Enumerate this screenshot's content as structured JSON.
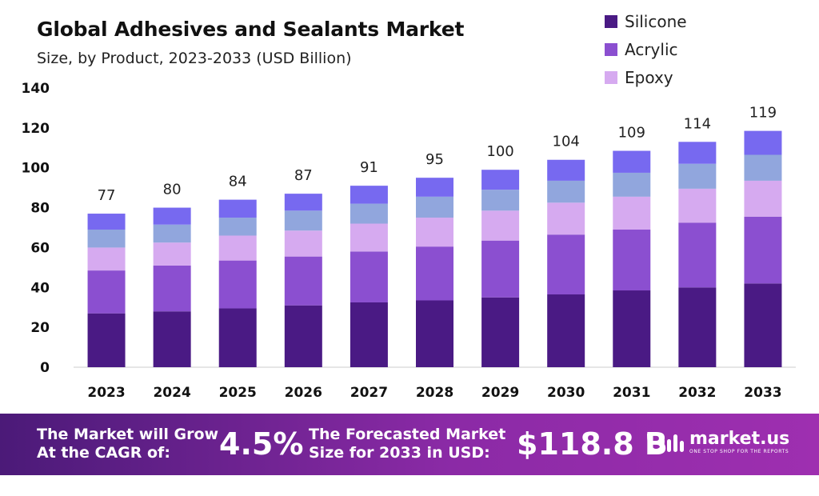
{
  "header": {
    "title": "Global Adhesives and Sealants Market",
    "subtitle": "Size, by Product, 2023-2033 (USD Billion)"
  },
  "legend": [
    {
      "label": "Silicone",
      "color": "#4a1a84"
    },
    {
      "label": "Acrylic",
      "color": "#8b4fd0"
    },
    {
      "label": "Epoxy",
      "color": "#d6aaf0"
    }
  ],
  "chart_data": {
    "type": "bar",
    "stacked": true,
    "categories": [
      "2023",
      "2024",
      "2025",
      "2026",
      "2027",
      "2028",
      "2029",
      "2030",
      "2031",
      "2032",
      "2033"
    ],
    "series": [
      {
        "name": "Silicone",
        "color": "#4a1a84",
        "values": [
          27,
          28,
          29.5,
          31,
          32.5,
          33.5,
          35,
          36.5,
          38.5,
          40,
          42
        ]
      },
      {
        "name": "Acrylic",
        "color": "#8b4fd0",
        "values": [
          21.5,
          23,
          24,
          24.5,
          25.5,
          27,
          28.5,
          30,
          30.5,
          32.5,
          33.5
        ]
      },
      {
        "name": "Epoxy",
        "color": "#d6aaf0",
        "values": [
          11.5,
          11.5,
          12.5,
          13,
          14,
          14.5,
          15,
          16,
          16.5,
          17,
          18
        ]
      },
      {
        "color": "#91a6dd",
        "values": [
          9,
          9,
          9,
          10,
          10,
          10.5,
          10.5,
          11,
          12,
          12.5,
          13
        ]
      },
      {
        "color": "#7769f0",
        "values": [
          8,
          8.5,
          9,
          8.5,
          9,
          9.5,
          10,
          10.5,
          11,
          11,
          12
        ]
      }
    ],
    "totals": [
      "77",
      "80",
      "84",
      "87",
      "91",
      "95",
      "100",
      "104",
      "109",
      "114",
      "119"
    ],
    "yticks": [
      "0",
      "20",
      "40",
      "60",
      "80",
      "100",
      "120",
      "140"
    ],
    "ylim": [
      0,
      140
    ],
    "title": "Global Adhesives and Sealants Market",
    "subtitle": "Size, by Product, 2023-2033 (USD Billion)",
    "xlabel": "",
    "ylabel": "",
    "legend_position": "top-right",
    "grid": false
  },
  "banner": {
    "cagr_text_line1": "The Market will Grow",
    "cagr_text_line2": "At the CAGR of:",
    "cagr_value": "4.5%",
    "forecast_text_line1": "The Forecasted Market",
    "forecast_text_line2": "Size for 2033 in USD:",
    "forecast_value": "$118.8 B",
    "brand_name": "market.us",
    "brand_tagline": "ONE STOP SHOP FOR THE REPORTS"
  }
}
